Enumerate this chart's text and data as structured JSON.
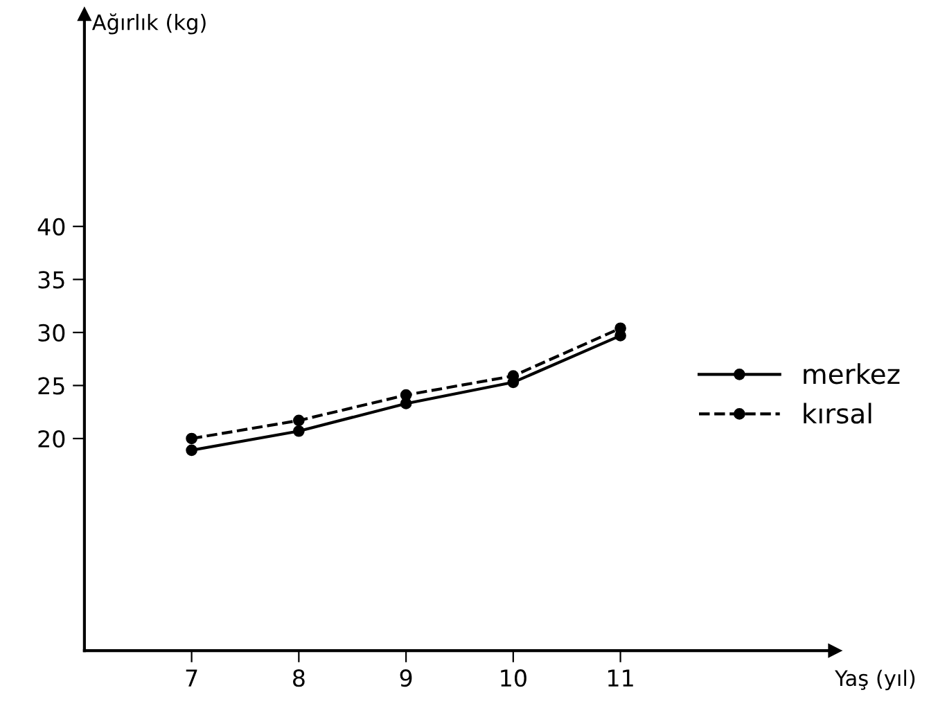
{
  "chart_data": {
    "type": "line",
    "xlabel": "Yaş (yıl)",
    "ylabel": "Ağırlık (kg)",
    "x": [
      7,
      8,
      9,
      10,
      11
    ],
    "series": [
      {
        "name": "merkez",
        "color": "#000000",
        "line_style": "solid",
        "values": [
          18.9,
          20.7,
          23.3,
          25.3,
          29.7
        ]
      },
      {
        "name": "kırsal",
        "color": "#000000",
        "line_style": "dashed",
        "values": [
          20.0,
          21.7,
          24.1,
          25.9,
          30.4
        ]
      }
    ],
    "xlim": [
      6,
      13
    ],
    "ylim": [
      0,
      60
    ],
    "xticks": [
      7,
      8,
      9,
      10,
      11
    ],
    "yticks": [
      20,
      25,
      30,
      35,
      40
    ],
    "marker": "circle",
    "grid": false,
    "legend": "right"
  }
}
